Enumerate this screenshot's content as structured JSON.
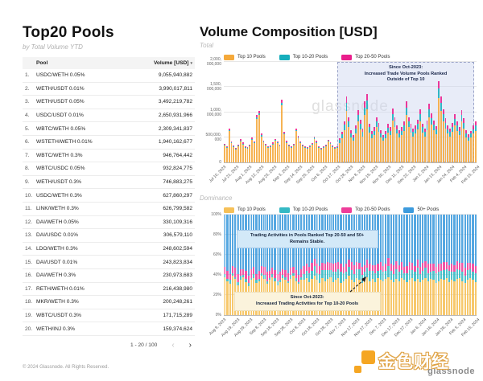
{
  "left_panel": {
    "title": "Top20 Pools",
    "subtitle": "by Total Volume YTD",
    "table": {
      "col_pool": "Pool",
      "col_volume": "Volume [USD]",
      "sort_indicator": "▾",
      "rows": [
        {
          "rank": "1.",
          "pool": "USDC/WETH 0.05%",
          "volume": "9,055,940,882"
        },
        {
          "rank": "2.",
          "pool": "WETH/USDT 0.01%",
          "volume": "3,990,017,811"
        },
        {
          "rank": "3.",
          "pool": "WETH/USDT 0.05%",
          "volume": "3,492,219,782"
        },
        {
          "rank": "4.",
          "pool": "USDC/USDT 0.01%",
          "volume": "2,650,931,966"
        },
        {
          "rank": "5.",
          "pool": "WBTC/WETH 0.05%",
          "volume": "2,309,341,837"
        },
        {
          "rank": "6.",
          "pool": "WSTETH/WETH 0.01%",
          "volume": "1,940,162,677"
        },
        {
          "rank": "7.",
          "pool": "WBTC/WETH 0.3%",
          "volume": "946,764,442"
        },
        {
          "rank": "8.",
          "pool": "WBTC/USDC 0.05%",
          "volume": "932,824,775"
        },
        {
          "rank": "9.",
          "pool": "WETH/USDT 0.3%",
          "volume": "746,883,275"
        },
        {
          "rank": "10.",
          "pool": "USDC/WETH 0.3%",
          "volume": "627,860,297"
        },
        {
          "rank": "11.",
          "pool": "LINK/WETH 0.3%",
          "volume": "626,799,582"
        },
        {
          "rank": "12.",
          "pool": "DAI/WETH 0.05%",
          "volume": "330,109,316"
        },
        {
          "rank": "13.",
          "pool": "DAI/USDC 0.01%",
          "volume": "306,579,110"
        },
        {
          "rank": "14.",
          "pool": "LDO/WETH 0.3%",
          "volume": "248,602,594"
        },
        {
          "rank": "15.",
          "pool": "DAI/USDT 0.01%",
          "volume": "243,823,834"
        },
        {
          "rank": "16.",
          "pool": "DAI/WETH 0.3%",
          "volume": "230,973,683"
        },
        {
          "rank": "17.",
          "pool": "RETH/WETH 0.01%",
          "volume": "216,438,980"
        },
        {
          "rank": "18.",
          "pool": "MKR/WETH 0.3%",
          "volume": "200,248,261"
        },
        {
          "rank": "19.",
          "pool": "WBTC/USDT 0.3%",
          "volume": "171,715,289"
        },
        {
          "rank": "20.",
          "pool": "WETH/INJ 0.3%",
          "volume": "159,374,624"
        }
      ]
    },
    "pagination": {
      "label": "1 - 20 / 100",
      "prev": "‹",
      "next": "›"
    }
  },
  "right_panel": {
    "title": "Volume Composition [USD]",
    "total_label": "Total",
    "dominance_label": "Dominance",
    "watermark": "glassnode"
  },
  "footer": {
    "copyright": "© 2024 Glassnode. All Rights Reserved.",
    "brand_cn": "金色财经",
    "brand_glassnode": "glassnode"
  },
  "colors": {
    "top10": "#F5A93B",
    "top10_20": "#16AEBC",
    "top20_50": "#EA1E8C",
    "plus50": "#2E97DE",
    "region_fill": "#CDD4F0",
    "note_blue": "#D3E9F8",
    "note_cream": "#FBF3DC"
  },
  "chart_data": [
    {
      "type": "bar",
      "stacked": true,
      "title": "Total",
      "unit": "USD",
      "values_unit": "millions USD per day",
      "ylim": [
        0,
        2000000000
      ],
      "ytick_labels": [
        "0",
        "500,000,\n000",
        "1,000,\n000,000",
        "1,500,\n000,000",
        "2,000,\n000,000"
      ],
      "x_tick_labels": [
        "Jul 10, 2023",
        "Jul 21, 2023",
        "Aug 1, 2023",
        "Aug 12, 2023",
        "Aug 23, 2023",
        "Sep 3, 2023",
        "Sep 14, 2023",
        "Sep 25, 2023",
        "Oct 6, 2023",
        "Oct 17, 2023",
        "Oct 28, 2023",
        "Nov 8, 2023",
        "Nov 19, 2023",
        "Nov 30, 2023",
        "Dec 11, 2023",
        "Dec 22, 2023",
        "Jan 2, 2024",
        "Jan 13, 2024",
        "Jan 24, 2024",
        "Feb 4, 2024",
        "Feb 15, 2024"
      ],
      "legend_position": "top",
      "annotation": "Since Oct-2023:\nIncreased Trade Volume Pools Ranked\nOutside of Top 10",
      "highlight_region": {
        "start_frac": 0.45,
        "end_frac": 0.99
      },
      "series": [
        {
          "name": "Top 10 Pools",
          "color": "#F5A93B",
          "values": [
            340,
            290,
            620,
            380,
            310,
            270,
            330,
            420,
            360,
            300,
            280,
            320,
            450,
            380,
            860,
            940,
            520,
            400,
            340,
            290,
            310,
            360,
            430,
            380,
            320,
            1140,
            560,
            390,
            330,
            290,
            340,
            620,
            480,
            380,
            330,
            300,
            280,
            310,
            350,
            470,
            390,
            300,
            270,
            290,
            330,
            410,
            370,
            310,
            280,
            300,
            390,
            480,
            640,
            1020,
            700,
            500,
            430,
            570,
            810,
            660,
            520,
            940,
            1060,
            600,
            480,
            540,
            700,
            610,
            500,
            430,
            480,
            590,
            540,
            830,
            700,
            570,
            500,
            540,
            630,
            940,
            700,
            590,
            520,
            570,
            660,
            820,
            600,
            520,
            640,
            900,
            760,
            640,
            560,
            1280,
            1020,
            820,
            680,
            570,
            520,
            610,
            740,
            630,
            540,
            810,
            680,
            500,
            430,
            490,
            570,
            630
          ]
        },
        {
          "name": "Top 10-20 Pools",
          "color": "#16AEBC",
          "values": [
            13,
            11,
            26,
            15,
            12,
            10,
            13,
            17,
            14,
            12,
            11,
            13,
            18,
            15,
            36,
            40,
            21,
            16,
            14,
            11,
            12,
            14,
            17,
            15,
            13,
            48,
            23,
            16,
            13,
            11,
            14,
            26,
            19,
            15,
            13,
            12,
            11,
            12,
            14,
            19,
            16,
            12,
            10,
            11,
            13,
            16,
            15,
            12,
            11,
            12,
            55,
            75,
            105,
            170,
            115,
            80,
            70,
            95,
            135,
            110,
            85,
            155,
            175,
            100,
            80,
            90,
            115,
            100,
            82,
            70,
            80,
            98,
            90,
            138,
            116,
            94,
            82,
            90,
            104,
            155,
            116,
            98,
            86,
            94,
            110,
            136,
            100,
            86,
            106,
            150,
            126,
            106,
            92,
            195,
            170,
            136,
            112,
            94,
            86,
            100,
            122,
            104,
            90,
            134,
            112,
            82,
            72,
            80,
            94,
            104
          ]
        },
        {
          "name": "Top 20-50 Pools",
          "color": "#EA1E8C",
          "values": [
            18,
            15,
            34,
            20,
            16,
            14,
            17,
            22,
            19,
            16,
            15,
            17,
            24,
            20,
            48,
            52,
            28,
            21,
            18,
            15,
            16,
            19,
            22,
            20,
            17,
            62,
            30,
            21,
            17,
            15,
            18,
            34,
            25,
            20,
            17,
            16,
            14,
            16,
            18,
            25,
            21,
            16,
            14,
            15,
            17,
            21,
            19,
            16,
            14,
            16,
            40,
            56,
            78,
            125,
            85,
            60,
            52,
            70,
            100,
            82,
            63,
            115,
            130,
            74,
            59,
            67,
            86,
            74,
            61,
            52,
            59,
            73,
            67,
            102,
            86,
            70,
            61,
            67,
            77,
            115,
            86,
            73,
            64,
            70,
            82,
            101,
            74,
            64,
            79,
            111,
            94,
            79,
            68,
            145,
            126,
            101,
            83,
            70,
            64,
            74,
            91,
            77,
            67,
            99,
            83,
            61,
            53,
            59,
            70,
            77
          ]
        }
      ]
    },
    {
      "type": "bar",
      "stacked": true,
      "normalized": true,
      "title": "Dominance",
      "unit": "%",
      "ylim": [
        0,
        100
      ],
      "ytick_labels": [
        "0%",
        "20%",
        "40%",
        "60%",
        "80%",
        "100%"
      ],
      "x_tick_labels": [
        "Aug 9, 2023",
        "Aug 19, 2023",
        "Aug 29, 2023",
        "Sep 8, 2023",
        "Sep 18, 2023",
        "Sep 28, 2023",
        "Oct 8, 2023",
        "Oct 18, 2023",
        "Oct 28, 2023",
        "Nov 7, 2023",
        "Nov 17, 2023",
        "Nov 27, 2023",
        "Dec 7, 2023",
        "Dec 17, 2023",
        "Dec 27, 2023",
        "Jan 6, 2024",
        "Jan 16, 2024",
        "Jan 26, 2024",
        "Feb 5, 2024",
        "Feb 15, 2024"
      ],
      "legend_position": "top",
      "annotations": [
        "Trading Activities in Pools Ranked Top 20-50 and 50+\nRemains Stable.",
        "Since Oct-2023:\nIncreased Trading Activities for Top 10-20 Pools"
      ],
      "series": [
        {
          "name": "Top 10 Pools",
          "color": "#F6C058",
          "values": [
            38,
            34,
            31,
            39,
            36,
            30,
            35,
            38,
            33,
            29,
            35,
            37,
            32,
            34,
            39,
            36,
            31,
            35,
            38,
            34,
            30,
            33,
            37,
            35,
            32,
            36,
            39,
            34,
            31,
            35,
            35,
            37,
            33,
            36,
            39,
            35,
            32,
            37,
            34,
            36,
            38,
            33,
            35,
            37,
            32,
            34,
            36,
            39,
            35,
            33,
            37,
            35,
            32,
            36,
            38,
            34,
            36,
            33,
            37,
            35,
            34,
            36,
            38,
            35,
            33,
            36,
            34,
            37,
            35,
            33,
            35,
            37,
            34,
            36,
            33,
            35,
            37,
            34,
            36,
            35,
            32,
            34,
            36,
            35,
            37,
            33,
            35,
            34,
            36,
            37,
            34,
            32,
            35,
            37,
            35,
            33
          ]
        },
        {
          "name": "Top 10-20 Pools",
          "color": "#35B9C4",
          "values": [
            3,
            2,
            4,
            3,
            2,
            3,
            4,
            2,
            3,
            3,
            2,
            4,
            3,
            2,
            3,
            4,
            3,
            2,
            3,
            3,
            4,
            2,
            3,
            3,
            2,
            4,
            3,
            3,
            2,
            3,
            6,
            7,
            9,
            8,
            10,
            7,
            9,
            8,
            11,
            9,
            7,
            10,
            8,
            9,
            11,
            8,
            7,
            9,
            10,
            8,
            9,
            11,
            8,
            7,
            9,
            10,
            8,
            9,
            7,
            10,
            9,
            8,
            11,
            9,
            8,
            10,
            9,
            8,
            7,
            9,
            10,
            8,
            9,
            11,
            8,
            9,
            10,
            8,
            7,
            9,
            10,
            9,
            8,
            10,
            9,
            11,
            8,
            9,
            10,
            8,
            9,
            7,
            10,
            9,
            8,
            9
          ]
        },
        {
          "name": "Top 20-50 Pools",
          "color": "#EE3D9A",
          "values": [
            7,
            8,
            6,
            7,
            9,
            8,
            7,
            6,
            8,
            7,
            9,
            7,
            6,
            8,
            7,
            8,
            9,
            7,
            6,
            8,
            7,
            8,
            6,
            7,
            8,
            7,
            6,
            8,
            7,
            8,
            8,
            7,
            6,
            8,
            7,
            9,
            8,
            7,
            6,
            8,
            7,
            8,
            9,
            7,
            8,
            6,
            8,
            7,
            8,
            9,
            7,
            6,
            8,
            7,
            8,
            7,
            6,
            8,
            7,
            8,
            6,
            7,
            8,
            7,
            9,
            8,
            7,
            8,
            6,
            7,
            8,
            7,
            6,
            8,
            7,
            8,
            7,
            9,
            8,
            7,
            6,
            8,
            7,
            8,
            7,
            6,
            8,
            7,
            8,
            7,
            9,
            8,
            7,
            6,
            8,
            7
          ]
        },
        {
          "name": "50+ Pools",
          "color": "#3D9BDD",
          "values_note": "remainder to 100%"
        }
      ]
    }
  ]
}
